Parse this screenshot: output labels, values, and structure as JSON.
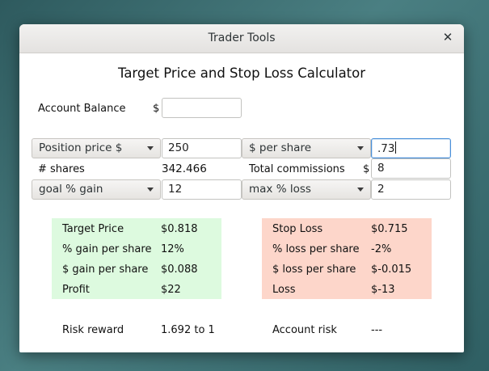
{
  "window": {
    "title": "Trader Tools"
  },
  "heading": "Target Price and Stop Loss Calculator",
  "account": {
    "label": "Account Balance",
    "currency": "$",
    "value": ""
  },
  "position": {
    "mode": "Position price $",
    "value": "250"
  },
  "per_share": {
    "mode": "$ per share",
    "value": ".73"
  },
  "shares": {
    "label": "# shares",
    "value": "342.466"
  },
  "commissions": {
    "label": "Total commissions",
    "currency": "$",
    "value": "8"
  },
  "goal": {
    "mode": "goal % gain",
    "value": "12"
  },
  "max_loss": {
    "mode": "max % loss",
    "value": "2"
  },
  "target_panel": {
    "rows": [
      {
        "label": "Target Price",
        "value": "$0.818"
      },
      {
        "label": "% gain per share",
        "value": "12%"
      },
      {
        "label": "$ gain per share",
        "value": "$0.088"
      },
      {
        "label": "Profit",
        "value": "$22"
      }
    ]
  },
  "stop_panel": {
    "rows": [
      {
        "label": "Stop Loss",
        "value": "$0.715"
      },
      {
        "label": "% loss per share",
        "value": "-2%"
      },
      {
        "label": "$ loss per share",
        "value": "$-0.015"
      },
      {
        "label": "Loss",
        "value": "$-13"
      }
    ]
  },
  "risk_reward": {
    "label": "Risk reward",
    "value": "1.692 to 1"
  },
  "account_risk": {
    "label": "Account risk",
    "value": "---"
  },
  "colors": {
    "green_panel": "#ddfadf",
    "red_panel": "#fdd6ca",
    "focus": "#4a90d9"
  }
}
